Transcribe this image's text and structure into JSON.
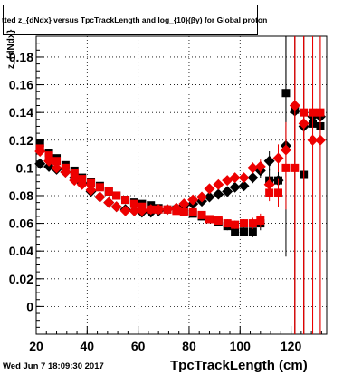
{
  "header": {
    "title": "tted  z_{dNdx} versus TpcTrackLength and log_{10}(βγ) for Global proton",
    "timestamp": "Wed Jun  7 18:09:30 2017"
  },
  "chart_data": {
    "type": "scatter",
    "xlabel": "TpcTrackLength (cm)",
    "ylabel": "z_{dNdx}",
    "xlim": [
      20,
      134
    ],
    "ylim": [
      -0.02,
      0.195
    ],
    "xticks": [
      20,
      40,
      60,
      80,
      100,
      120
    ],
    "yticks": [
      0,
      0.02,
      0.04,
      0.06,
      0.08,
      0.1,
      0.12,
      0.14,
      0.16,
      0.18
    ],
    "ytick_labels": [
      "0",
      "0.02",
      "0.04",
      "0.06",
      "0.08",
      "0.1",
      "0.12",
      "0.14",
      "0.16",
      "0.18"
    ],
    "grid": true,
    "series": [
      {
        "color": "#000000",
        "marker": "square",
        "x": [
          21.5,
          25,
          28,
          31.5,
          35,
          38,
          41.5,
          45,
          48.5,
          51.5,
          55,
          58.5,
          61.5,
          65,
          68,
          71.5,
          75,
          78,
          81.5,
          85,
          88,
          91.5,
          95,
          98,
          101.5,
          105,
          108,
          111.5,
          115,
          118,
          121.5,
          125,
          128.5,
          131.5
        ],
        "y": [
          0.118,
          0.111,
          0.107,
          0.102,
          0.098,
          0.093,
          0.09,
          0.087,
          0.083,
          0.08,
          0.077,
          0.075,
          0.074,
          0.073,
          0.071,
          0.07,
          0.07,
          0.069,
          0.067,
          0.065,
          0.063,
          0.061,
          0.058,
          0.054,
          0.054,
          0.054,
          0.06,
          0.091,
          0.091,
          0.154,
          0.142,
          0.095,
          0.132,
          0.13
        ],
        "yerr": [
          0.002,
          0.002,
          0.002,
          0.002,
          0.002,
          0.002,
          0.002,
          0.002,
          0.002,
          0.002,
          0.002,
          0.002,
          0.002,
          0.002,
          0.002,
          0.002,
          0.002,
          0.002,
          0.002,
          0.002,
          0.002,
          0.002,
          0.003,
          0.003,
          0.003,
          0.004,
          0.005,
          0.008,
          0.012,
          0.06,
          0.2,
          0.2,
          0.2,
          0.2
        ]
      },
      {
        "color": "#000000",
        "marker": "diamond",
        "x": [
          21.5,
          25,
          28,
          31.5,
          35,
          38,
          41.5,
          45,
          48.5,
          51.5,
          55,
          58.5,
          61.5,
          65,
          68,
          71.5,
          75,
          78,
          81.5,
          85,
          88,
          91.5,
          95,
          98,
          101.5,
          105,
          108,
          111.5,
          115,
          118,
          121.5,
          125,
          128.5,
          131.5
        ],
        "y": [
          0.103,
          0.101,
          0.099,
          0.097,
          0.093,
          0.089,
          0.083,
          0.079,
          0.075,
          0.072,
          0.07,
          0.069,
          0.068,
          0.068,
          0.069,
          0.07,
          0.071,
          0.073,
          0.074,
          0.076,
          0.079,
          0.081,
          0.083,
          0.086,
          0.087,
          0.093,
          0.098,
          0.105,
          0.091,
          0.116,
          0.141,
          0.13,
          0.137,
          0.137
        ],
        "yerr": [
          0.002,
          0.002,
          0.002,
          0.002,
          0.002,
          0.002,
          0.002,
          0.002,
          0.002,
          0.002,
          0.002,
          0.002,
          0.002,
          0.002,
          0.002,
          0.002,
          0.002,
          0.002,
          0.002,
          0.002,
          0.002,
          0.002,
          0.003,
          0.003,
          0.003,
          0.004,
          0.005,
          0.007,
          0.01,
          0.08,
          0.2,
          0.2,
          0.2,
          0.2
        ]
      },
      {
        "color": "#ee0000",
        "marker": "square",
        "x": [
          21.5,
          25,
          28,
          31.5,
          35,
          38,
          41.5,
          45,
          48.5,
          51.5,
          55,
          58.5,
          61.5,
          65,
          68,
          71.5,
          75,
          78,
          81.5,
          85,
          88,
          91.5,
          95,
          98,
          101.5,
          105,
          108,
          111.5,
          115,
          118,
          121.5,
          125,
          128.5,
          131.5
        ],
        "y": [
          0.114,
          0.109,
          0.105,
          0.1,
          0.096,
          0.092,
          0.089,
          0.086,
          0.083,
          0.08,
          0.077,
          0.074,
          0.072,
          0.07,
          0.07,
          0.07,
          0.069,
          0.068,
          0.068,
          0.066,
          0.063,
          0.062,
          0.06,
          0.059,
          0.06,
          0.06,
          0.062,
          0.082,
          0.082,
          0.1,
          0.1,
          0.14,
          0.14,
          0.14
        ],
        "yerr": [
          0.002,
          0.002,
          0.002,
          0.002,
          0.002,
          0.002,
          0.002,
          0.002,
          0.002,
          0.002,
          0.002,
          0.002,
          0.002,
          0.002,
          0.002,
          0.002,
          0.002,
          0.002,
          0.002,
          0.002,
          0.002,
          0.002,
          0.003,
          0.003,
          0.003,
          0.004,
          0.005,
          0.006,
          0.01,
          0.03,
          0.2,
          0.2,
          0.2,
          0.2
        ]
      },
      {
        "color": "#ee0000",
        "marker": "diamond",
        "x": [
          21.5,
          25,
          28,
          31.5,
          35,
          38,
          41.5,
          45,
          48.5,
          51.5,
          55,
          58.5,
          61.5,
          65,
          68,
          71.5,
          75,
          78,
          81.5,
          85,
          88,
          91.5,
          95,
          98,
          101.5,
          105,
          108,
          111.5,
          115,
          118,
          121.5,
          125,
          128.5,
          131.5
        ],
        "y": [
          0.112,
          0.105,
          0.1,
          0.097,
          0.091,
          0.088,
          0.084,
          0.079,
          0.075,
          0.072,
          0.069,
          0.069,
          0.069,
          0.07,
          0.07,
          0.07,
          0.071,
          0.074,
          0.077,
          0.079,
          0.085,
          0.088,
          0.091,
          0.093,
          0.093,
          0.1,
          0.101,
          0.088,
          0.107,
          0.113,
          0.145,
          0.132,
          0.12,
          0.12
        ],
        "yerr": [
          0.002,
          0.002,
          0.002,
          0.002,
          0.002,
          0.002,
          0.002,
          0.002,
          0.002,
          0.002,
          0.002,
          0.002,
          0.002,
          0.002,
          0.002,
          0.002,
          0.002,
          0.002,
          0.002,
          0.002,
          0.002,
          0.002,
          0.003,
          0.003,
          0.003,
          0.004,
          0.005,
          0.006,
          0.01,
          0.02,
          0.2,
          0.2,
          0.2,
          0.2
        ]
      }
    ]
  }
}
